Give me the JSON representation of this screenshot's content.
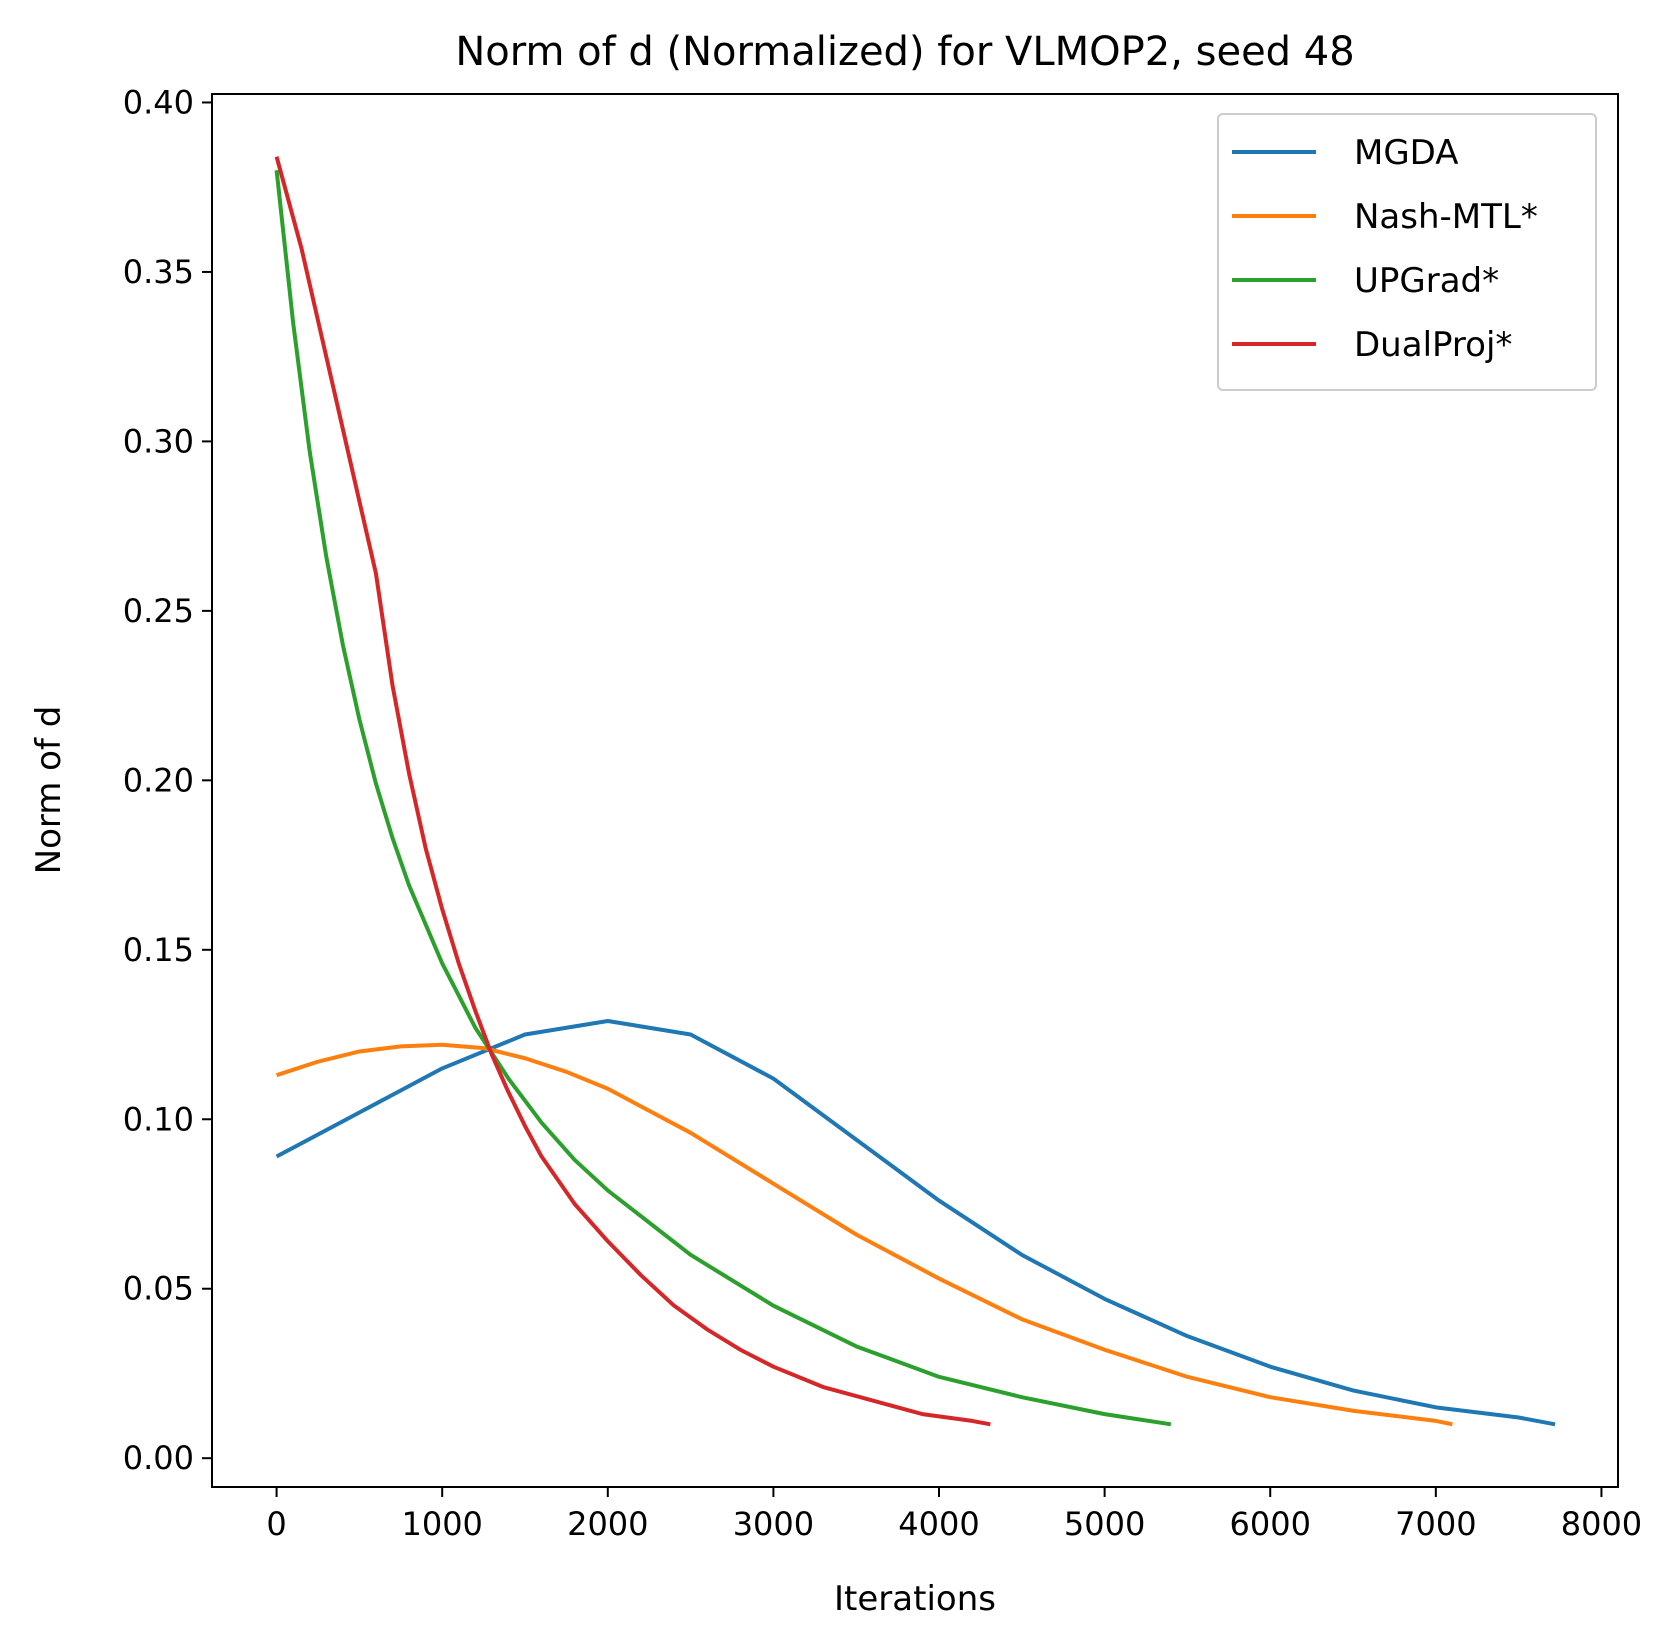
{
  "chart_data": {
    "type": "line",
    "title": "Norm of d (Normalized) for VLMOP2, seed 48",
    "xlabel": "Iterations",
    "ylabel": "Norm of d",
    "xlim": [
      -390,
      8100
    ],
    "ylim": [
      -0.0085,
      0.4025
    ],
    "xticks": [
      0,
      1000,
      2000,
      3000,
      4000,
      5000,
      6000,
      7000,
      8000
    ],
    "xtick_labels": [
      "0",
      "1000",
      "2000",
      "3000",
      "4000",
      "5000",
      "6000",
      "7000",
      "8000"
    ],
    "yticks": [
      0.0,
      0.05,
      0.1,
      0.15,
      0.2,
      0.25,
      0.3,
      0.35,
      0.4
    ],
    "ytick_labels": [
      "0.00",
      "0.05",
      "0.10",
      "0.15",
      "0.20",
      "0.25",
      "0.30",
      "0.35",
      "0.40"
    ],
    "grid": false,
    "legend_position": "top-right",
    "series": [
      {
        "name": "MGDA",
        "color": "#1f77b4",
        "x": [
          0,
          500,
          1000,
          1500,
          2000,
          2500,
          3000,
          3500,
          4000,
          4500,
          5000,
          5500,
          6000,
          6500,
          7000,
          7500,
          7720
        ],
        "y": [
          0.089,
          0.102,
          0.115,
          0.125,
          0.129,
          0.125,
          0.112,
          0.094,
          0.076,
          0.06,
          0.047,
          0.036,
          0.027,
          0.02,
          0.015,
          0.012,
          0.01
        ]
      },
      {
        "name": "Nash-MTL*",
        "color": "#ff7f0e",
        "x": [
          0,
          250,
          500,
          750,
          1000,
          1250,
          1500,
          1750,
          2000,
          2500,
          3000,
          3500,
          4000,
          4500,
          5000,
          5500,
          6000,
          6500,
          7000,
          7100
        ],
        "y": [
          0.113,
          0.117,
          0.12,
          0.1215,
          0.122,
          0.121,
          0.118,
          0.114,
          0.109,
          0.096,
          0.081,
          0.066,
          0.053,
          0.041,
          0.032,
          0.024,
          0.018,
          0.014,
          0.011,
          0.01
        ]
      },
      {
        "name": "UPGrad*",
        "color": "#2ca02c",
        "x": [
          0,
          100,
          200,
          300,
          400,
          500,
          600,
          700,
          800,
          1000,
          1200,
          1400,
          1600,
          1800,
          2000,
          2500,
          3000,
          3500,
          4000,
          4500,
          5000,
          5400
        ],
        "y": [
          0.38,
          0.335,
          0.297,
          0.266,
          0.24,
          0.218,
          0.199,
          0.183,
          0.169,
          0.146,
          0.127,
          0.112,
          0.099,
          0.088,
          0.079,
          0.06,
          0.045,
          0.033,
          0.024,
          0.018,
          0.013,
          0.01
        ]
      },
      {
        "name": "DualProj*",
        "color": "#d62728",
        "x": [
          0,
          150,
          300,
          450,
          600,
          700,
          800,
          900,
          1000,
          1100,
          1200,
          1300,
          1400,
          1500,
          1600,
          1800,
          2000,
          2200,
          2400,
          2600,
          2800,
          3000,
          3300,
          3600,
          3900,
          4200,
          4310
        ],
        "y": [
          0.384,
          0.357,
          0.325,
          0.293,
          0.261,
          0.228,
          0.202,
          0.18,
          0.162,
          0.146,
          0.132,
          0.119,
          0.108,
          0.098,
          0.089,
          0.075,
          0.064,
          0.054,
          0.045,
          0.038,
          0.032,
          0.027,
          0.021,
          0.017,
          0.013,
          0.011,
          0.01
        ]
      }
    ]
  }
}
